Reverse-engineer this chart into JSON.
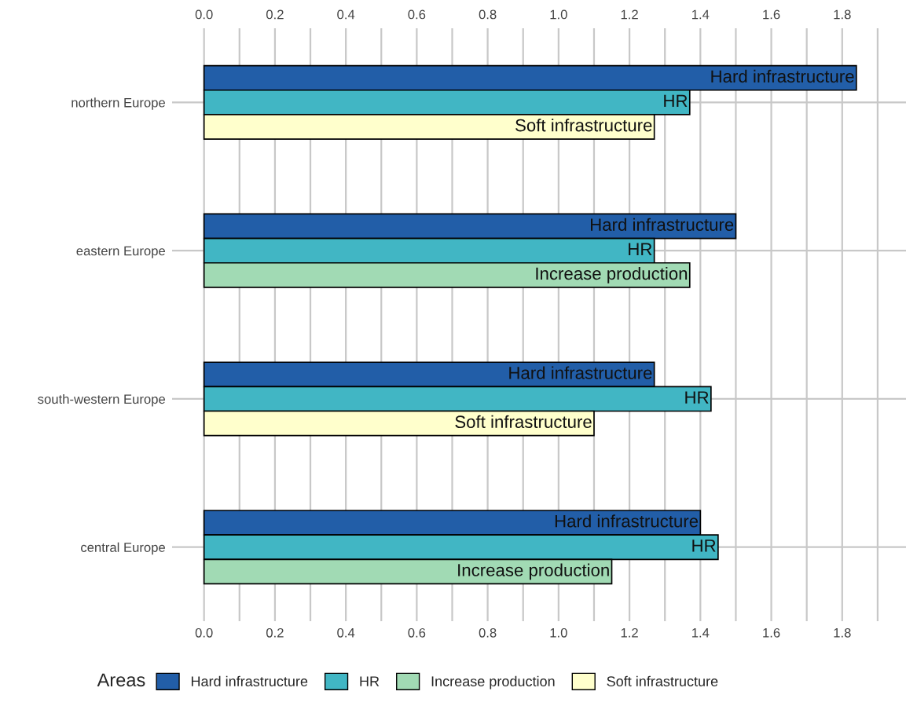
{
  "chart_data": {
    "type": "bar",
    "orientation": "horizontal",
    "categories": [
      "northern Europe",
      "eastern Europe",
      "south-western Europe",
      "central Europe"
    ],
    "series": [
      {
        "name": "Hard infrastructure",
        "color": "#225ea8",
        "values": [
          1.84,
          1.5,
          1.27,
          1.4
        ],
        "value_labels": [
          "Hard infrastructure",
          "Hard infrastructure",
          "Hard infrastructure",
          "Hard infrastructure"
        ]
      },
      {
        "name": "HR",
        "color": "#41b6c4",
        "values": [
          1.37,
          1.27,
          1.43,
          1.45
        ],
        "value_labels": [
          "HR",
          "HR",
          "HR",
          "HR"
        ]
      },
      {
        "name": "Increase production",
        "color": "#a1dab4",
        "values": [
          null,
          1.37,
          null,
          1.15
        ],
        "value_labels": [
          null,
          "Increase production",
          null,
          "Increase production"
        ]
      },
      {
        "name": "Soft infrastructure",
        "color": "#ffffcc",
        "values": [
          1.27,
          null,
          1.1,
          null
        ],
        "value_labels": [
          "Soft infrastructure",
          null,
          "Soft infrastructure",
          null
        ]
      }
    ],
    "legend_title": "Areas",
    "legend": "bottom",
    "grid": true,
    "xlim": [
      -0.09,
      1.98
    ],
    "xticks": [
      {
        "value": 0,
        "label": "0.0"
      },
      {
        "value": 0.1,
        "label": null
      },
      0.2,
      {
        "value": 0.3,
        "label": null
      },
      0.4,
      {
        "value": 0.5,
        "label": null
      },
      0.6,
      {
        "value": 0.7,
        "label": null
      },
      0.8,
      {
        "value": 0.9,
        "label": null
      },
      {
        "value": 1,
        "label": "1.0"
      },
      {
        "value": 1.1,
        "label": null
      },
      1.2,
      {
        "value": 1.3,
        "label": null
      },
      1.4,
      {
        "value": 1.5,
        "label": null
      },
      1.6,
      {
        "value": 1.7,
        "label": null
      },
      1.8,
      {
        "value": 1.9,
        "label": null
      }
    ],
    "x2lim": [
      -0.09,
      1.98
    ],
    "x2ticks": [
      {
        "value": 0,
        "label": "0.0"
      },
      0.2,
      0.4,
      0.6,
      0.8,
      {
        "value": 1,
        "label": "1.0"
      },
      1.2,
      1.4,
      1.6,
      1.8
    ]
  }
}
